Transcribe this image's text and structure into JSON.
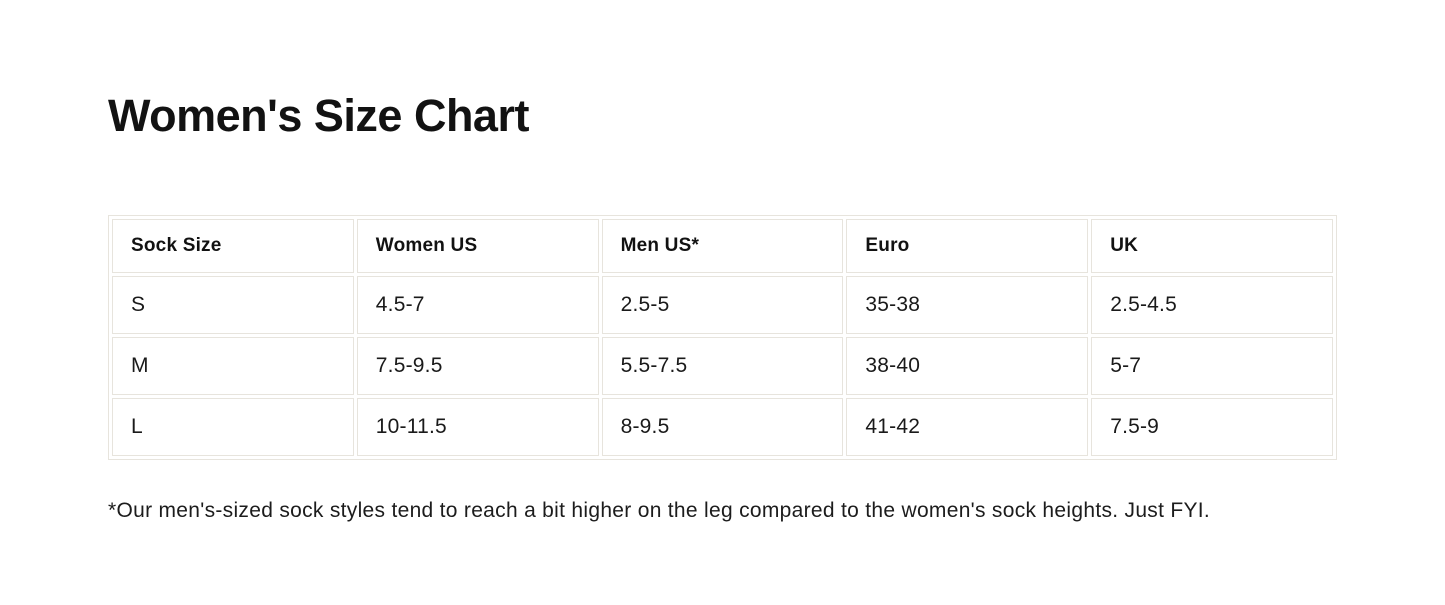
{
  "page": {
    "title": "Women's Size Chart",
    "footnote": "*Our men's-sized sock styles tend to reach a bit higher on the leg compared to the women's sock heights. Just FYI.",
    "colors": {
      "background": "#ffffff",
      "border": "#e7e4dd",
      "text": "#1a1a1a",
      "title_text": "#121212"
    }
  },
  "size_chart": {
    "columns": [
      "Sock Size",
      "Women US",
      "Men US*",
      "Euro",
      "UK"
    ],
    "rows": [
      {
        "cells": [
          "S",
          "4.5-7",
          "2.5-5",
          "35-38",
          "2.5-4.5"
        ]
      },
      {
        "cells": [
          "M",
          "7.5-9.5",
          "5.5-7.5",
          "38-40",
          "5-7"
        ]
      },
      {
        "cells": [
          "L",
          "10-11.5",
          "8-9.5",
          "41-42",
          "7.5-9"
        ]
      }
    ]
  }
}
